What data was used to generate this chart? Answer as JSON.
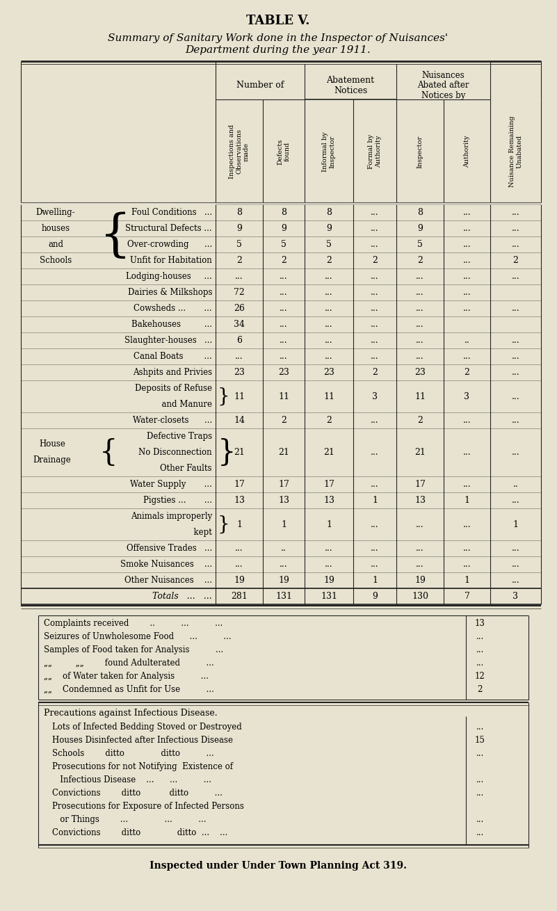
{
  "title1": "TABLE V.",
  "title2": "Summary of Sanitary Work done in the Inspector of Nuisances'",
  "title3": "Department during the year 1911.",
  "bg_color": "#e8e3d0",
  "text_color": "#111111",
  "col_headers_sub": [
    "Inspections and\nObservations\nmade",
    "Defects\nfound",
    "Informal by\nInspector",
    "Formal by\nAuthority",
    "Inspector",
    "Authority",
    "Nuisance Remaining\nUnabated"
  ],
  "rows": [
    {
      "label": "Foul Conditions   ...",
      "vals": [
        "8",
        "8",
        "8",
        "...",
        "8",
        "...",
        "..."
      ],
      "group": "dwelling",
      "rh": 1
    },
    {
      "label": "Structural Defects ...",
      "vals": [
        "9",
        "9",
        "9",
        "...",
        "9",
        "...",
        "..."
      ],
      "rh": 1
    },
    {
      "label": "Over-crowding      ...",
      "vals": [
        "5",
        "5",
        "5",
        "...",
        "5",
        "...",
        "..."
      ],
      "rh": 1
    },
    {
      "label": "Unfit for Habitation",
      "vals": [
        "2",
        "2",
        "2",
        "2",
        "2",
        "...",
        "2"
      ],
      "rh": 1
    },
    {
      "label": "Lodging-houses     ...",
      "vals": [
        "...",
        "...",
        "...",
        "...",
        "...",
        "...",
        "..."
      ],
      "rh": 1
    },
    {
      "label": "Dairies & Milkshops",
      "vals": [
        "72",
        "...",
        "...",
        "...",
        "...",
        "...",
        ""
      ],
      "rh": 1
    },
    {
      "label": "Cowsheds ...       ...",
      "vals": [
        "26",
        "...",
        "...",
        "...",
        "...",
        "...",
        "..."
      ],
      "rh": 1
    },
    {
      "label": "Bakehouses         ...",
      "vals": [
        "34",
        "...",
        "...",
        "...",
        "...",
        "",
        ""
      ],
      "rh": 1
    },
    {
      "label": "Slaughter-houses   ...",
      "vals": [
        "6",
        "...",
        "...",
        "...",
        "...",
        "..",
        "..."
      ],
      "rh": 1
    },
    {
      "label": "Canal Boats        ...",
      "vals": [
        "...",
        "...",
        "...",
        "...",
        "...",
        "...",
        "..."
      ],
      "rh": 1
    },
    {
      "label": "Ashpits and Privies",
      "vals": [
        "23",
        "23",
        "23",
        "2",
        "23",
        "2",
        "..."
      ],
      "rh": 1
    },
    {
      "label": "Deposits of Refuse",
      "label2": "  and Manure",
      "vals": [
        "11",
        "11",
        "11",
        "3",
        "11",
        "3",
        "..."
      ],
      "rh": 2
    },
    {
      "label": "Water-closets      ...",
      "vals": [
        "14",
        "2",
        "2",
        "...",
        "2",
        "...",
        "..."
      ],
      "rh": 1
    },
    {
      "label": "Defective Traps",
      "label2": "No Disconnection",
      "label3": "Other Faults",
      "vals": [
        "21",
        "21",
        "21",
        "...",
        "21",
        "...",
        "..."
      ],
      "group": "drainage",
      "rh": 3
    },
    {
      "label": "Water Supply       ...",
      "vals": [
        "17",
        "17",
        "17",
        "...",
        "17",
        "...",
        ".."
      ],
      "rh": 1
    },
    {
      "label": "Pigsties ...       ...",
      "vals": [
        "13",
        "13",
        "13",
        "1",
        "13",
        "1",
        "..."
      ],
      "rh": 1
    },
    {
      "label": "Animals improperly",
      "label2": "  kept",
      "vals": [
        "1",
        "1",
        "1",
        "...",
        "...",
        "...",
        "1"
      ],
      "rh": 2
    },
    {
      "label": "Offensive Trades   ...",
      "vals": [
        "...",
        "..",
        "...",
        "...",
        "...",
        "...",
        "..."
      ],
      "rh": 1
    },
    {
      "label": "Smoke Nuisances    ...",
      "vals": [
        "...",
        "...",
        "...",
        "...",
        "...",
        "...",
        "..."
      ],
      "rh": 1
    },
    {
      "label": "Other Nuisances    ...",
      "vals": [
        "19",
        "19",
        "19",
        "1",
        "19",
        "1",
        "..."
      ],
      "rh": 1
    }
  ],
  "totals": [
    "281",
    "131",
    "131",
    "9",
    "130",
    "7",
    "3"
  ],
  "complaints": [
    [
      "Complaints received        ..          ...          ...",
      "13"
    ],
    [
      "Seizures of Unwholesome Food      ...          ...",
      "..."
    ],
    [
      "Samples of Food taken for Analysis          ...",
      "..."
    ],
    [
      "„„         „„        found Adulterated          ...",
      "..."
    ],
    [
      "„„    of Water taken for Analysis          ...",
      "12"
    ],
    [
      "„„    Condemned as Unfit for Use          ...",
      "2"
    ]
  ],
  "precautions_title": "Precautions against Infectious Disease.",
  "precautions": [
    [
      "Lots of Infected Bedding Stoved or Destroyed",
      "..."
    ],
    [
      "Houses Disinfected after Infectious Disease",
      "15"
    ],
    [
      "Schools        ditto              ditto          ...",
      "..."
    ],
    [
      "Prosecutions for not Notifying  Existence of",
      ""
    ],
    [
      "   Infectious Disease    ...      ...          ...",
      "..."
    ],
    [
      "Convictions        ditto           ditto          ...",
      "..."
    ],
    [
      "Prosecutions for Exposure of Infected Persons",
      ""
    ],
    [
      "   or Things        ...              ...          ...",
      "..."
    ],
    [
      "Convictions        ditto              ditto  ...    ...",
      "..."
    ]
  ],
  "footer": "Inspected under Under Town Planning Act 319."
}
